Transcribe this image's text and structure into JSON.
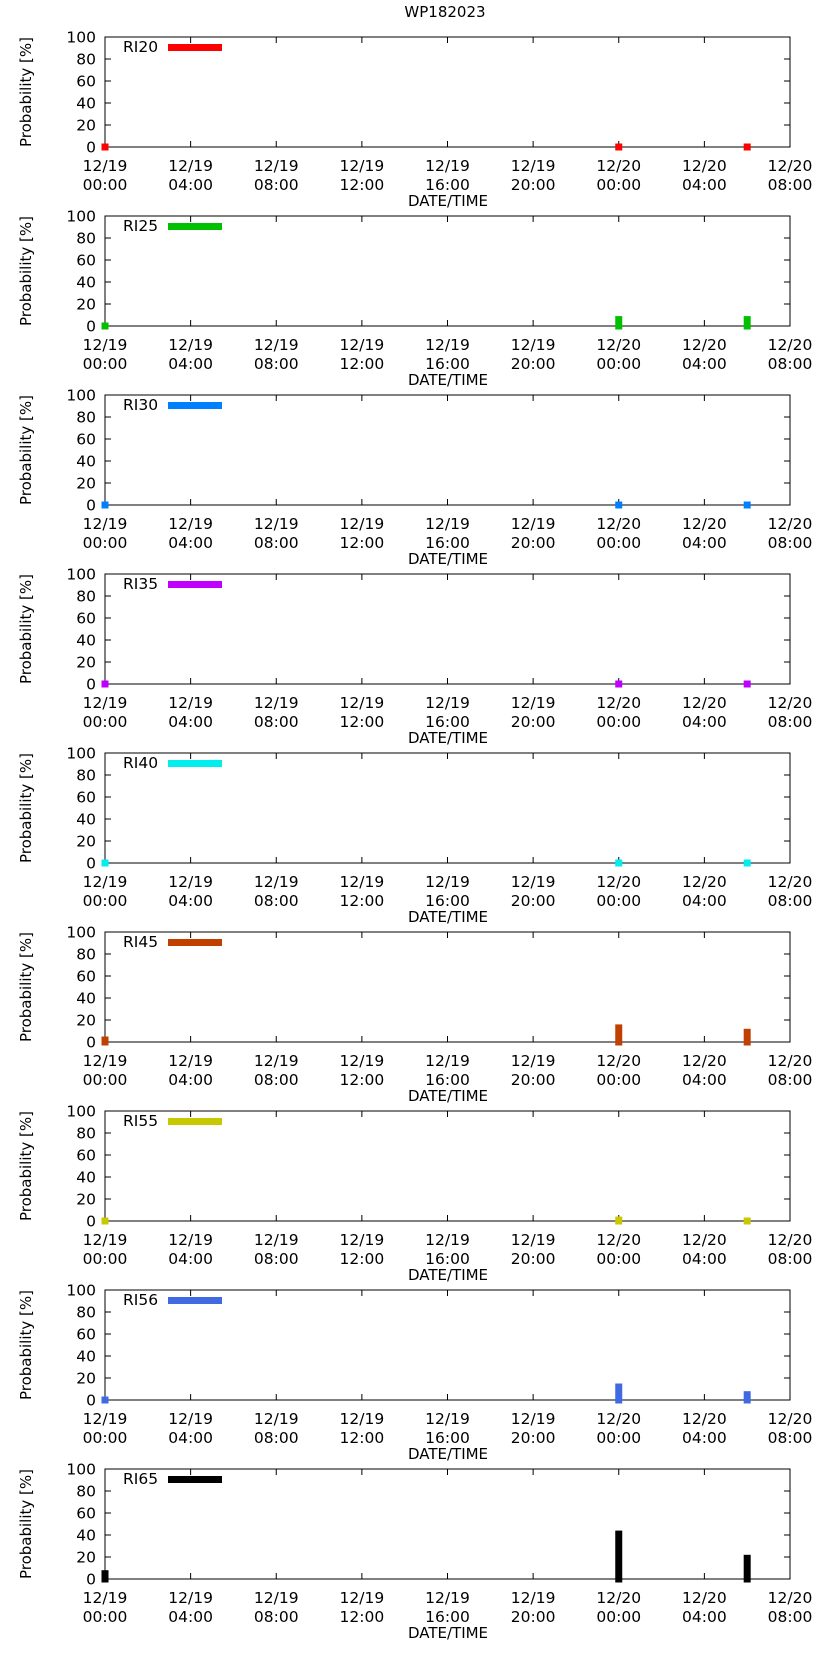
{
  "chart_data": {
    "type": "bar",
    "title": "WP182023",
    "xlabel": "DATE/TIME",
    "ylabel": "Probability [%]",
    "ylim": [
      0,
      100
    ],
    "yticks": [
      0,
      20,
      40,
      60,
      80,
      100
    ],
    "xlim_hours": [
      0,
      32
    ],
    "xticks": [
      {
        "hour": 0,
        "date": "12/19",
        "time": "00:00"
      },
      {
        "hour": 4,
        "date": "12/19",
        "time": "04:00"
      },
      {
        "hour": 8,
        "date": "12/19",
        "time": "08:00"
      },
      {
        "hour": 12,
        "date": "12/19",
        "time": "12:00"
      },
      {
        "hour": 16,
        "date": "12/19",
        "time": "16:00"
      },
      {
        "hour": 20,
        "date": "12/19",
        "time": "20:00"
      },
      {
        "hour": 24,
        "date": "12/20",
        "time": "00:00"
      },
      {
        "hour": 28,
        "date": "12/20",
        "time": "04:00"
      },
      {
        "hour": 32,
        "date": "12/20",
        "time": "08:00"
      }
    ],
    "x_hours": [
      0,
      24,
      30
    ],
    "series": [
      {
        "name": "RI20",
        "color": "#ff0000",
        "values": [
          0,
          0,
          0
        ]
      },
      {
        "name": "RI25",
        "color": "#00c000",
        "values": [
          2,
          9,
          9
        ]
      },
      {
        "name": "RI30",
        "color": "#0080ff",
        "values": [
          1,
          2,
          2
        ]
      },
      {
        "name": "RI35",
        "color": "#c000ff",
        "values": [
          1,
          2,
          2
        ]
      },
      {
        "name": "RI40",
        "color": "#00eeee",
        "values": [
          1,
          2,
          2
        ]
      },
      {
        "name": "RI45",
        "color": "#c04000",
        "values": [
          5,
          16,
          12
        ]
      },
      {
        "name": "RI55",
        "color": "#c8c800",
        "values": [
          1,
          4,
          3
        ]
      },
      {
        "name": "RI56",
        "color": "#4169e1",
        "values": [
          3,
          15,
          8
        ]
      },
      {
        "name": "RI65",
        "color": "#000000",
        "values": [
          8,
          44,
          22
        ]
      }
    ]
  }
}
